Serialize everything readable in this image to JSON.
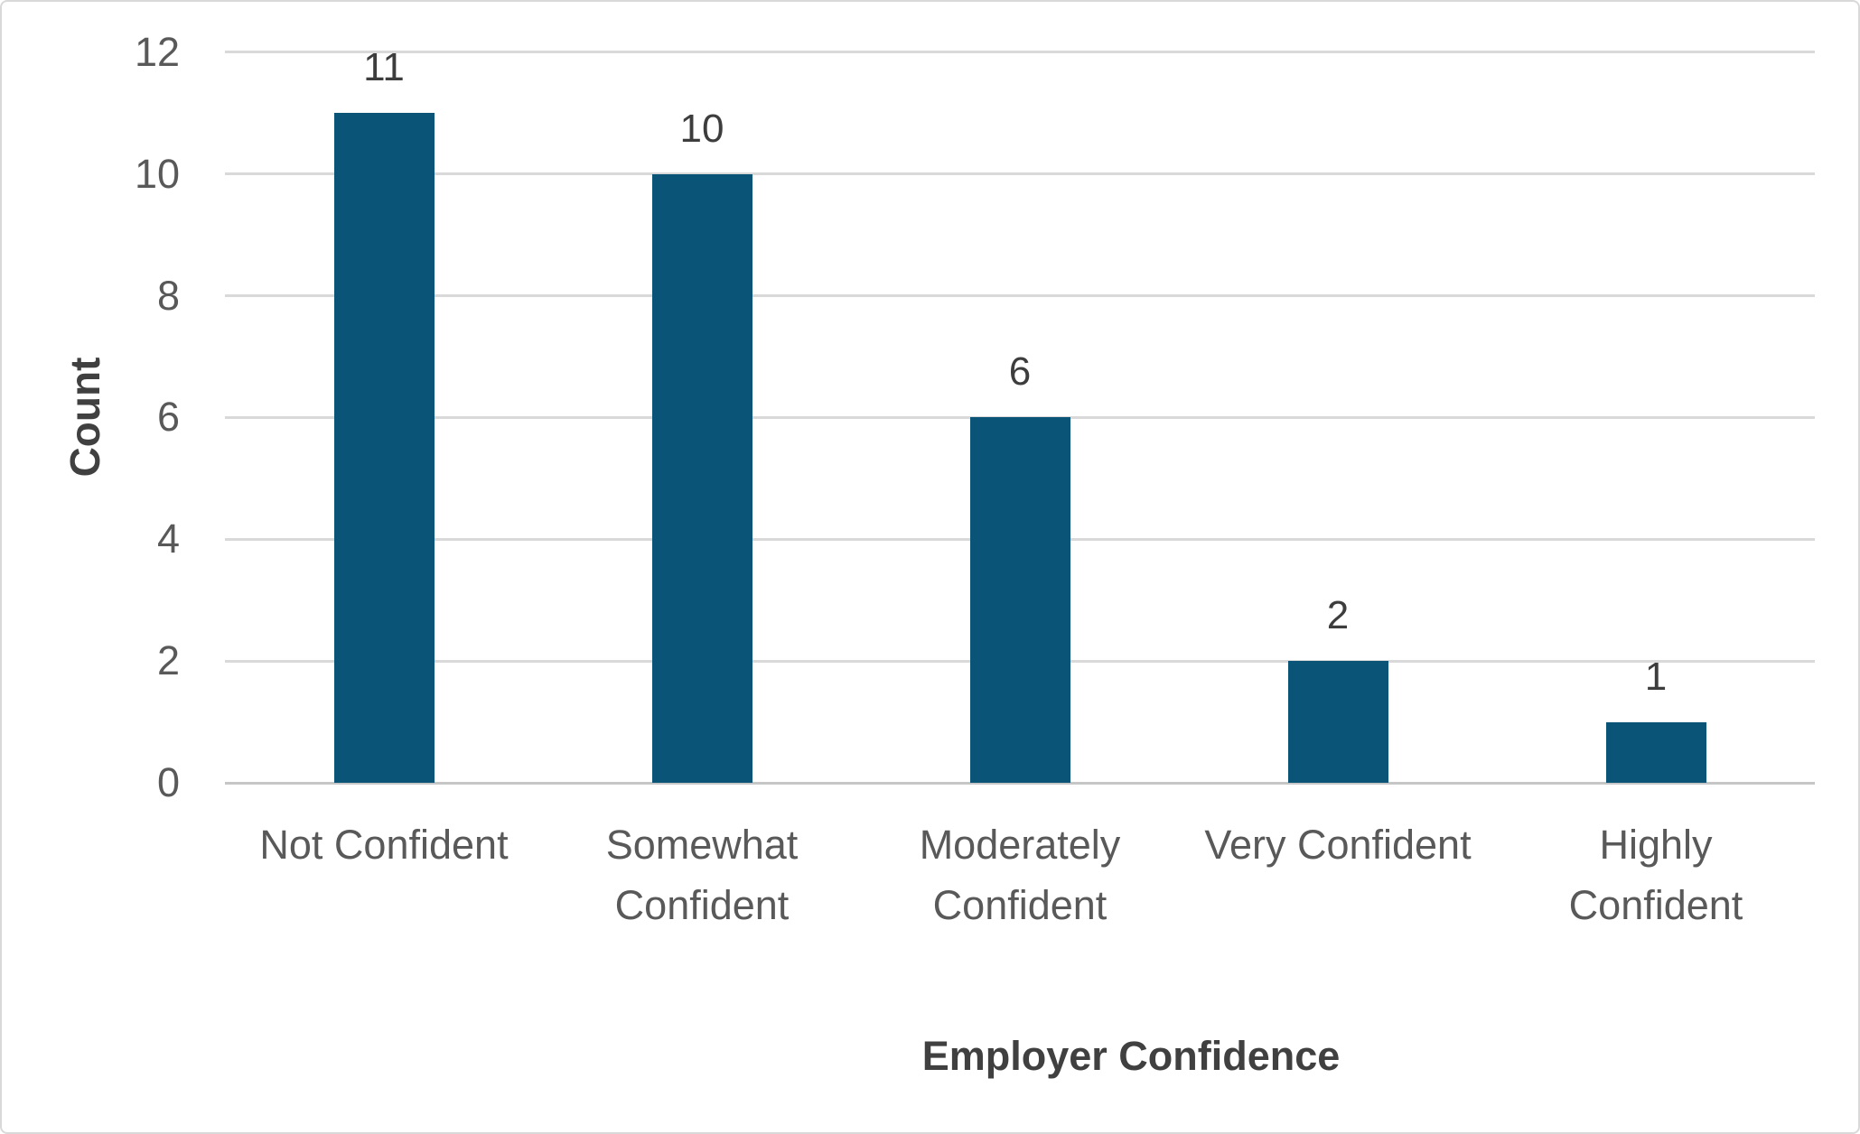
{
  "page": {
    "background": "#ffffff",
    "border_color": "#d9d9d9"
  },
  "chart_data": {
    "type": "bar",
    "categories": [
      "Not Confident",
      "Somewhat Confident",
      "Moderately Confident",
      "Very Confident",
      "Highly Confident"
    ],
    "category_display_lines": [
      [
        "Not Confident"
      ],
      [
        "Somewhat",
        "Confident"
      ],
      [
        "Moderately",
        "Confident"
      ],
      [
        "Very Confident"
      ],
      [
        "Highly",
        "Confident"
      ]
    ],
    "values": [
      11,
      10,
      6,
      2,
      1
    ],
    "data_labels": [
      "11",
      "10",
      "6",
      "2",
      "1"
    ],
    "xlabel": "Employer Confidence",
    "ylabel": "Count",
    "ylim": [
      0,
      12
    ],
    "ytick_step": 2,
    "yticks": [
      "0",
      "2",
      "4",
      "6",
      "8",
      "10",
      "12"
    ],
    "grid": "horizontal",
    "legend": "none",
    "colors": {
      "bar": "#0a5478",
      "gridline": "#d9d9d9",
      "axis_line": "#c6c6c6",
      "tick_label": "#595959",
      "category_label": "#595959",
      "data_label": "#3d3d3d",
      "axis_title": "#404040"
    }
  }
}
